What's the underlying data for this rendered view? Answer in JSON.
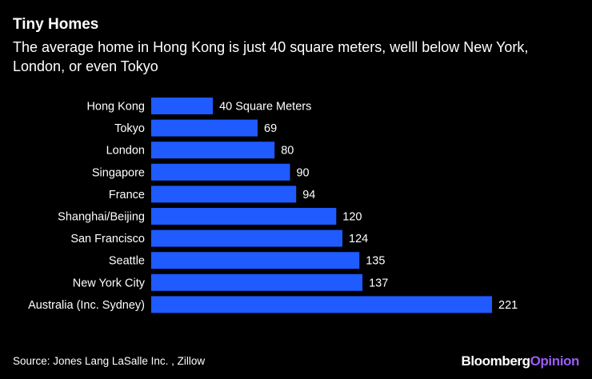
{
  "header": {
    "title": "Tiny Homes",
    "subtitle": "The average home in Hong Kong is just 40 square meters, welll below New York, London, or even Tokyo"
  },
  "footer": {
    "source": "Source: Jones Lang LaSalle Inc. , Zillow",
    "brand_main": "Bloomberg",
    "brand_accent": "Opinion"
  },
  "colors": {
    "background": "#000000",
    "bar": "#1f5bff",
    "text": "#ffffff",
    "brand_accent": "#9b5cf6"
  },
  "chart_data": {
    "type": "bar",
    "orientation": "horizontal",
    "title": "Tiny Homes",
    "subtitle": "The average home in Hong Kong is just 40 square meters, welll below New York, London, or even Tokyo",
    "xlabel": "",
    "ylabel": "",
    "grid": false,
    "xlim": [
      0,
      221
    ],
    "categories": [
      "Hong Kong",
      "Tokyo",
      "London",
      "Singapore",
      "France",
      "Shanghai/Beijing",
      "San Francisco",
      "Seattle",
      "New York City",
      "Australia (Inc. Sydney)"
    ],
    "values": [
      40,
      69,
      80,
      90,
      94,
      120,
      124,
      135,
      137,
      221
    ],
    "data_labels": [
      "40 Square Meters",
      "69",
      "80",
      "90",
      "94",
      "120",
      "124",
      "135",
      "137",
      "221"
    ]
  }
}
